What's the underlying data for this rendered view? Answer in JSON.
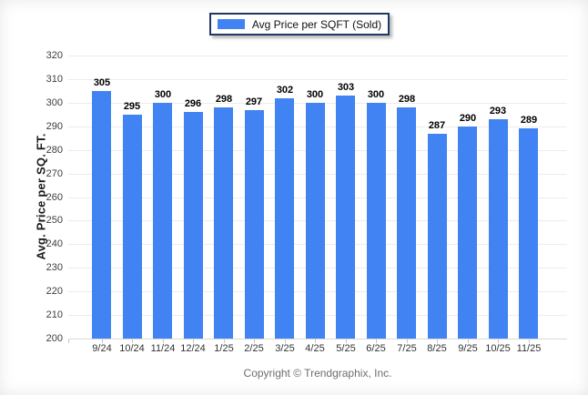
{
  "legend": {
    "label": "Avg Price per SQFT (Sold)"
  },
  "footer": {
    "text": "Copyright © Trendgraphix, Inc."
  },
  "colors": {
    "bar": "#4183F2",
    "grid": "#ececec",
    "baseline": "#d9d9d9",
    "tick_mark": "#c6c6c6",
    "y_label": "#3d3d3d",
    "x_label": "#333333",
    "value_label": "#000000",
    "legend_border": "#1F3864",
    "footer_text": "#6e6e6e"
  },
  "chart_data": {
    "type": "bar",
    "title": "",
    "series_name": "Avg Price per SQFT (Sold)",
    "categories": [
      "9/24",
      "10/24",
      "11/24",
      "12/24",
      "1/25",
      "2/25",
      "3/25",
      "4/25",
      "5/25",
      "6/25",
      "7/25",
      "8/25",
      "9/25",
      "10/25",
      "11/25"
    ],
    "values": [
      305,
      295,
      300,
      296,
      298,
      297,
      302,
      300,
      303,
      300,
      298,
      287,
      290,
      293,
      289
    ],
    "xlabel": "",
    "ylabel": "Avg. Price per SQ. FT.",
    "ylim": [
      200,
      320
    ],
    "ytick_step": 10,
    "grid": true,
    "value_labels": true,
    "legend_position": "top-center"
  }
}
